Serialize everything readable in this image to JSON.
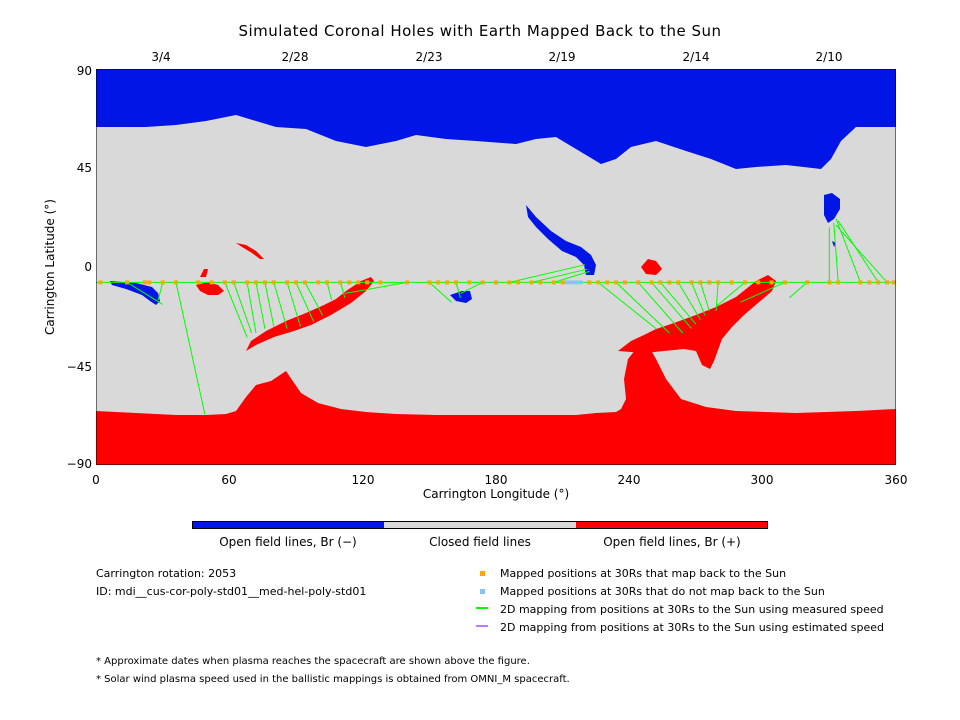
{
  "title": "Simulated Coronal Holes with Earth Mapped Back to the Sun",
  "top_dates": [
    "3/4",
    "2/28",
    "2/23",
    "2/19",
    "2/14",
    "2/10"
  ],
  "colors": {
    "open_negative": "#0015e6",
    "closed": "#d9d9d9",
    "open_positive": "#ff0000",
    "mapped_point": "#ffa500",
    "unmapped_point": "#87c3f5",
    "measured_speed_line": "#00ff00",
    "estimated_speed_line": "#b77dff"
  },
  "chart_data": {
    "type": "map",
    "title": "Simulated Coronal Holes with Earth Mapped Back to the Sun",
    "xlabel": "Carrington Longitude (°)",
    "ylabel": "Carrington Latitude (°)",
    "xlim": [
      0,
      360
    ],
    "ylim": [
      -90,
      90
    ],
    "x_ticks": [
      "0",
      "60",
      "120",
      "180",
      "240",
      "300",
      "360"
    ],
    "y_ticks": [
      "90",
      "45",
      "0",
      "−45",
      "−90"
    ],
    "top_axis_dates": [
      "3/4",
      "2/28",
      "2/23",
      "2/19",
      "2/14",
      "2/10"
    ],
    "earth_latitude_30Rs": -7,
    "mapped_longitudes": [
      2,
      14,
      22,
      24,
      30,
      36,
      46,
      52,
      58,
      62,
      68,
      72,
      76,
      80,
      86,
      90,
      94,
      100,
      104,
      110,
      114,
      118,
      122,
      128,
      140,
      150,
      154,
      158,
      162,
      168,
      174,
      180,
      186,
      190,
      196,
      200,
      206,
      210,
      222,
      226,
      230,
      234,
      238,
      244,
      250,
      254,
      258,
      262,
      268,
      272,
      276,
      280,
      286,
      292,
      298,
      304,
      310,
      320,
      330,
      334,
      344,
      348,
      352,
      356,
      360
    ],
    "unmapped_longitudes": [
      212,
      214,
      216,
      218
    ],
    "mappings": [
      {
        "from": [
          14,
          -7
        ],
        "to": [
          30,
          -17
        ]
      },
      {
        "from": [
          30,
          -7
        ],
        "to": [
          28,
          -15
        ]
      },
      {
        "from": [
          36,
          -7
        ],
        "to": [
          49,
          -67
        ]
      },
      {
        "from": [
          58,
          -7
        ],
        "to": [
          68,
          -32
        ]
      },
      {
        "from": [
          62,
          -7
        ],
        "to": [
          70,
          -30
        ]
      },
      {
        "from": [
          68,
          -7
        ],
        "to": [
          72,
          -30
        ]
      },
      {
        "from": [
          72,
          -7
        ],
        "to": [
          76,
          -28
        ]
      },
      {
        "from": [
          76,
          -7
        ],
        "to": [
          80,
          -27
        ]
      },
      {
        "from": [
          80,
          -7
        ],
        "to": [
          86,
          -28
        ]
      },
      {
        "from": [
          86,
          -7
        ],
        "to": [
          92,
          -27
        ]
      },
      {
        "from": [
          90,
          -7
        ],
        "to": [
          98,
          -25
        ]
      },
      {
        "from": [
          94,
          -7
        ],
        "to": [
          102,
          -22
        ]
      },
      {
        "from": [
          104,
          -7
        ],
        "to": [
          106,
          -15
        ]
      },
      {
        "from": [
          110,
          -7
        ],
        "to": [
          112,
          -14
        ]
      },
      {
        "from": [
          140,
          -7
        ],
        "to": [
          112,
          -12
        ]
      },
      {
        "from": [
          150,
          -7
        ],
        "to": [
          160,
          -16
        ]
      },
      {
        "from": [
          162,
          -7
        ],
        "to": [
          164,
          -14
        ]
      },
      {
        "from": [
          174,
          -7
        ],
        "to": [
          164,
          -12
        ]
      },
      {
        "from": [
          186,
          -7
        ],
        "to": [
          220,
          1
        ]
      },
      {
        "from": [
          196,
          -7
        ],
        "to": [
          221,
          -1
        ]
      },
      {
        "from": [
          206,
          -7
        ],
        "to": [
          222,
          -2
        ]
      },
      {
        "from": [
          226,
          -7
        ],
        "to": [
          252,
          -28
        ]
      },
      {
        "from": [
          234,
          -7
        ],
        "to": [
          258,
          -30
        ]
      },
      {
        "from": [
          244,
          -7
        ],
        "to": [
          264,
          -30
        ]
      },
      {
        "from": [
          250,
          -7
        ],
        "to": [
          268,
          -28
        ]
      },
      {
        "from": [
          254,
          -7
        ],
        "to": [
          270,
          -26
        ]
      },
      {
        "from": [
          262,
          -7
        ],
        "to": [
          272,
          -24
        ]
      },
      {
        "from": [
          268,
          -7
        ],
        "to": [
          274,
          -22
        ]
      },
      {
        "from": [
          272,
          -7
        ],
        "to": [
          276,
          -20
        ]
      },
      {
        "from": [
          280,
          -7
        ],
        "to": [
          279,
          -20
        ]
      },
      {
        "from": [
          292,
          -7
        ],
        "to": [
          279,
          -18
        ]
      },
      {
        "from": [
          310,
          -7
        ],
        "to": [
          290,
          -16
        ]
      },
      {
        "from": [
          320,
          -7
        ],
        "to": [
          312,
          -14
        ]
      },
      {
        "from": [
          330,
          -7
        ],
        "to": [
          330,
          18
        ]
      },
      {
        "from": [
          334,
          -7
        ],
        "to": [
          332,
          20
        ]
      },
      {
        "from": [
          344,
          -7
        ],
        "to": [
          333,
          22
        ]
      },
      {
        "from": [
          352,
          -7
        ],
        "to": [
          334,
          21
        ]
      },
      {
        "from": [
          356,
          -7
        ],
        "to": [
          333,
          19
        ]
      }
    ],
    "colorbar_labels": [
      "Open field lines, Br (−)",
      "Closed field lines",
      "Open field lines, Br (+)"
    ]
  },
  "info": {
    "rotation": "Carrington rotation: 2053",
    "id": "ID: mdi__cus-cor-poly-std01__med-hel-poly-std01"
  },
  "legend": [
    {
      "symbol": "orange-square",
      "label": "Mapped positions at 30Rs that map back to the Sun"
    },
    {
      "symbol": "lightblue-square",
      "label": "Mapped positions at 30Rs that do not map back to the Sun"
    },
    {
      "symbol": "green-line",
      "label": "2D mapping from positions at 30Rs to the Sun using measured speed"
    },
    {
      "symbol": "purple-line",
      "label": "2D mapping from positions at 30Rs to the Sun using estimated speed"
    }
  ],
  "notes": [
    "* Approximate dates when plasma reaches the spacecraft are shown above the figure.",
    "* Solar wind plasma speed used in the ballistic mappings is obtained from OMNI_M spacecraft."
  ]
}
